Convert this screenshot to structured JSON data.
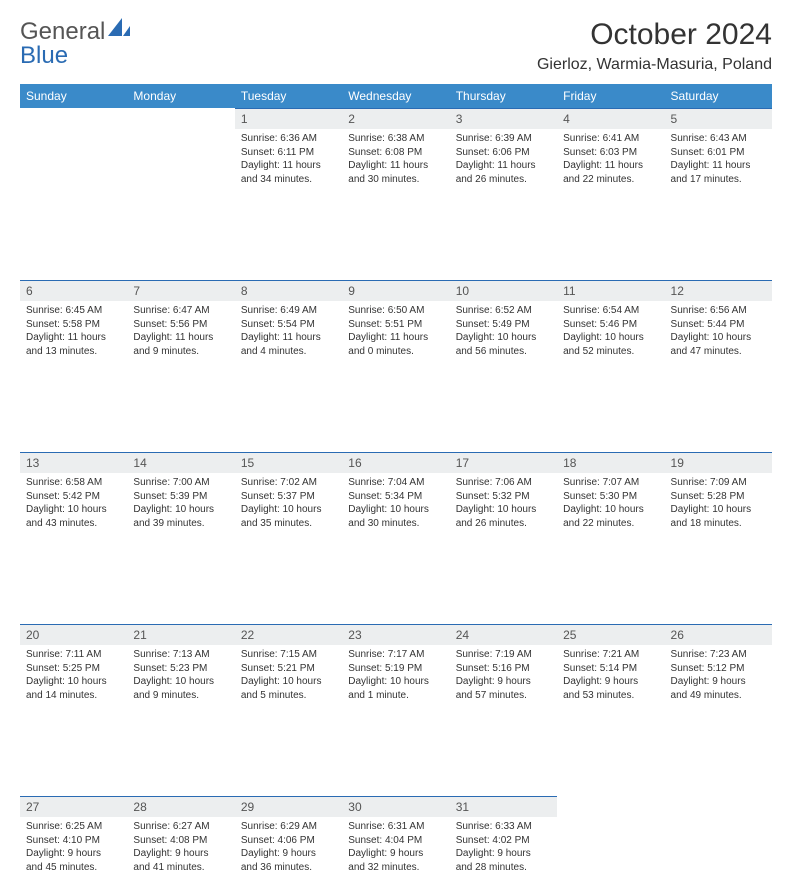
{
  "brand": {
    "part1": "General",
    "part2": "Blue"
  },
  "title": "October 2024",
  "location": "Gierloz, Warmia-Masuria, Poland",
  "colors": {
    "header_bg": "#3a8ac9",
    "daynum_bg": "#eceeef",
    "accent_border": "#2a6bb3"
  },
  "weekdays": [
    "Sunday",
    "Monday",
    "Tuesday",
    "Wednesday",
    "Thursday",
    "Friday",
    "Saturday"
  ],
  "weeks": [
    [
      null,
      null,
      {
        "n": "1",
        "sr": "Sunrise: 6:36 AM",
        "ss": "Sunset: 6:11 PM",
        "d1": "Daylight: 11 hours",
        "d2": "and 34 minutes."
      },
      {
        "n": "2",
        "sr": "Sunrise: 6:38 AM",
        "ss": "Sunset: 6:08 PM",
        "d1": "Daylight: 11 hours",
        "d2": "and 30 minutes."
      },
      {
        "n": "3",
        "sr": "Sunrise: 6:39 AM",
        "ss": "Sunset: 6:06 PM",
        "d1": "Daylight: 11 hours",
        "d2": "and 26 minutes."
      },
      {
        "n": "4",
        "sr": "Sunrise: 6:41 AM",
        "ss": "Sunset: 6:03 PM",
        "d1": "Daylight: 11 hours",
        "d2": "and 22 minutes."
      },
      {
        "n": "5",
        "sr": "Sunrise: 6:43 AM",
        "ss": "Sunset: 6:01 PM",
        "d1": "Daylight: 11 hours",
        "d2": "and 17 minutes."
      }
    ],
    [
      {
        "n": "6",
        "sr": "Sunrise: 6:45 AM",
        "ss": "Sunset: 5:58 PM",
        "d1": "Daylight: 11 hours",
        "d2": "and 13 minutes."
      },
      {
        "n": "7",
        "sr": "Sunrise: 6:47 AM",
        "ss": "Sunset: 5:56 PM",
        "d1": "Daylight: 11 hours",
        "d2": "and 9 minutes."
      },
      {
        "n": "8",
        "sr": "Sunrise: 6:49 AM",
        "ss": "Sunset: 5:54 PM",
        "d1": "Daylight: 11 hours",
        "d2": "and 4 minutes."
      },
      {
        "n": "9",
        "sr": "Sunrise: 6:50 AM",
        "ss": "Sunset: 5:51 PM",
        "d1": "Daylight: 11 hours",
        "d2": "and 0 minutes."
      },
      {
        "n": "10",
        "sr": "Sunrise: 6:52 AM",
        "ss": "Sunset: 5:49 PM",
        "d1": "Daylight: 10 hours",
        "d2": "and 56 minutes."
      },
      {
        "n": "11",
        "sr": "Sunrise: 6:54 AM",
        "ss": "Sunset: 5:46 PM",
        "d1": "Daylight: 10 hours",
        "d2": "and 52 minutes."
      },
      {
        "n": "12",
        "sr": "Sunrise: 6:56 AM",
        "ss": "Sunset: 5:44 PM",
        "d1": "Daylight: 10 hours",
        "d2": "and 47 minutes."
      }
    ],
    [
      {
        "n": "13",
        "sr": "Sunrise: 6:58 AM",
        "ss": "Sunset: 5:42 PM",
        "d1": "Daylight: 10 hours",
        "d2": "and 43 minutes."
      },
      {
        "n": "14",
        "sr": "Sunrise: 7:00 AM",
        "ss": "Sunset: 5:39 PM",
        "d1": "Daylight: 10 hours",
        "d2": "and 39 minutes."
      },
      {
        "n": "15",
        "sr": "Sunrise: 7:02 AM",
        "ss": "Sunset: 5:37 PM",
        "d1": "Daylight: 10 hours",
        "d2": "and 35 minutes."
      },
      {
        "n": "16",
        "sr": "Sunrise: 7:04 AM",
        "ss": "Sunset: 5:34 PM",
        "d1": "Daylight: 10 hours",
        "d2": "and 30 minutes."
      },
      {
        "n": "17",
        "sr": "Sunrise: 7:06 AM",
        "ss": "Sunset: 5:32 PM",
        "d1": "Daylight: 10 hours",
        "d2": "and 26 minutes."
      },
      {
        "n": "18",
        "sr": "Sunrise: 7:07 AM",
        "ss": "Sunset: 5:30 PM",
        "d1": "Daylight: 10 hours",
        "d2": "and 22 minutes."
      },
      {
        "n": "19",
        "sr": "Sunrise: 7:09 AM",
        "ss": "Sunset: 5:28 PM",
        "d1": "Daylight: 10 hours",
        "d2": "and 18 minutes."
      }
    ],
    [
      {
        "n": "20",
        "sr": "Sunrise: 7:11 AM",
        "ss": "Sunset: 5:25 PM",
        "d1": "Daylight: 10 hours",
        "d2": "and 14 minutes."
      },
      {
        "n": "21",
        "sr": "Sunrise: 7:13 AM",
        "ss": "Sunset: 5:23 PM",
        "d1": "Daylight: 10 hours",
        "d2": "and 9 minutes."
      },
      {
        "n": "22",
        "sr": "Sunrise: 7:15 AM",
        "ss": "Sunset: 5:21 PM",
        "d1": "Daylight: 10 hours",
        "d2": "and 5 minutes."
      },
      {
        "n": "23",
        "sr": "Sunrise: 7:17 AM",
        "ss": "Sunset: 5:19 PM",
        "d1": "Daylight: 10 hours",
        "d2": "and 1 minute."
      },
      {
        "n": "24",
        "sr": "Sunrise: 7:19 AM",
        "ss": "Sunset: 5:16 PM",
        "d1": "Daylight: 9 hours",
        "d2": "and 57 minutes."
      },
      {
        "n": "25",
        "sr": "Sunrise: 7:21 AM",
        "ss": "Sunset: 5:14 PM",
        "d1": "Daylight: 9 hours",
        "d2": "and 53 minutes."
      },
      {
        "n": "26",
        "sr": "Sunrise: 7:23 AM",
        "ss": "Sunset: 5:12 PM",
        "d1": "Daylight: 9 hours",
        "d2": "and 49 minutes."
      }
    ],
    [
      {
        "n": "27",
        "sr": "Sunrise: 6:25 AM",
        "ss": "Sunset: 4:10 PM",
        "d1": "Daylight: 9 hours",
        "d2": "and 45 minutes."
      },
      {
        "n": "28",
        "sr": "Sunrise: 6:27 AM",
        "ss": "Sunset: 4:08 PM",
        "d1": "Daylight: 9 hours",
        "d2": "and 41 minutes."
      },
      {
        "n": "29",
        "sr": "Sunrise: 6:29 AM",
        "ss": "Sunset: 4:06 PM",
        "d1": "Daylight: 9 hours",
        "d2": "and 36 minutes."
      },
      {
        "n": "30",
        "sr": "Sunrise: 6:31 AM",
        "ss": "Sunset: 4:04 PM",
        "d1": "Daylight: 9 hours",
        "d2": "and 32 minutes."
      },
      {
        "n": "31",
        "sr": "Sunrise: 6:33 AM",
        "ss": "Sunset: 4:02 PM",
        "d1": "Daylight: 9 hours",
        "d2": "and 28 minutes."
      },
      null,
      null
    ]
  ]
}
